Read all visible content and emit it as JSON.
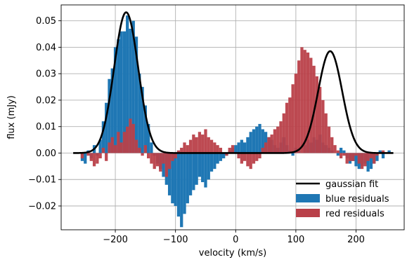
{
  "chart_data": {
    "type": "bar",
    "xlabel": "velocity (km/s)",
    "ylabel": "flux (mJy)",
    "xlim": [
      -290,
      280
    ],
    "ylim": [
      -0.029,
      0.056
    ],
    "x_ticks": [
      -200,
      -100,
      0,
      100,
      200
    ],
    "x_tick_labels": [
      "−200",
      "−100",
      "0",
      "100",
      "200"
    ],
    "y_ticks": [
      -0.02,
      -0.01,
      0.0,
      0.01,
      0.02,
      0.03,
      0.04,
      0.05
    ],
    "y_tick_labels": [
      "−0.02",
      "−0.01",
      "0.00",
      "0.01",
      "0.02",
      "0.03",
      "0.04",
      "0.05"
    ],
    "grid": true,
    "legend_position": "lower-right",
    "bin_width": 5,
    "series": [
      {
        "name": "blue residuals",
        "color": "#1f77b4",
        "x": [
          -255,
          -250,
          -245,
          -240,
          -235,
          -230,
          -225,
          -220,
          -215,
          -210,
          -205,
          -200,
          -195,
          -190,
          -185,
          -180,
          -175,
          -170,
          -165,
          -160,
          -155,
          -150,
          -145,
          -140,
          -135,
          -130,
          -125,
          -120,
          -115,
          -110,
          -105,
          -100,
          -95,
          -90,
          -85,
          -80,
          -75,
          -70,
          -65,
          -60,
          -55,
          -50,
          -45,
          -40,
          -35,
          -30,
          -25,
          -20,
          -15,
          -10,
          -5,
          0,
          5,
          10,
          15,
          20,
          25,
          30,
          35,
          40,
          45,
          50,
          55,
          60,
          65,
          70,
          75,
          80,
          85,
          90,
          95,
          100,
          105,
          110,
          115,
          120,
          125,
          130,
          135,
          140,
          145,
          150,
          155,
          160,
          165,
          170,
          175,
          180,
          185,
          190,
          195,
          200,
          205,
          210,
          215,
          220,
          225,
          230,
          235,
          240,
          245,
          250,
          255
        ],
        "values": [
          -0.003,
          -0.004,
          0.001,
          -0.002,
          0.003,
          -0.001,
          0.005,
          0.012,
          0.019,
          0.028,
          0.032,
          0.04,
          0.043,
          0.046,
          0.046,
          0.052,
          0.047,
          0.05,
          0.044,
          0.03,
          0.025,
          0.018,
          0.011,
          0.004,
          -0.001,
          -0.004,
          -0.006,
          -0.009,
          -0.012,
          -0.016,
          -0.019,
          -0.02,
          -0.024,
          -0.028,
          -0.023,
          -0.019,
          -0.016,
          -0.014,
          -0.012,
          -0.009,
          -0.011,
          -0.013,
          -0.01,
          -0.007,
          -0.006,
          -0.004,
          -0.003,
          -0.002,
          -0.001,
          0.001,
          0.002,
          0.003,
          0.004,
          0.005,
          0.004,
          0.006,
          0.008,
          0.009,
          0.01,
          0.011,
          0.009,
          0.008,
          0.006,
          0.005,
          0.003,
          0.002,
          0.004,
          0.006,
          0.003,
          0.001,
          -0.001,
          0.002,
          0.001,
          0.0,
          0.003,
          0.005,
          0.004,
          0.006,
          0.005,
          0.007,
          0.004,
          0.003,
          0.002,
          0.001,
          0.0,
          -0.001,
          0.002,
          0.001,
          -0.002,
          -0.004,
          -0.003,
          -0.005,
          -0.006,
          -0.005,
          -0.004,
          -0.007,
          -0.006,
          -0.004,
          -0.003,
          0.001,
          -0.002,
          0.0,
          0.001
        ]
      },
      {
        "name": "red residuals",
        "color": "#b94049",
        "x": [
          -255,
          -250,
          -245,
          -240,
          -235,
          -230,
          -225,
          -220,
          -215,
          -210,
          -205,
          -200,
          -195,
          -190,
          -185,
          -180,
          -175,
          -170,
          -165,
          -160,
          -155,
          -150,
          -145,
          -140,
          -135,
          -130,
          -125,
          -120,
          -115,
          -110,
          -105,
          -100,
          -95,
          -90,
          -85,
          -80,
          -75,
          -70,
          -65,
          -60,
          -55,
          -50,
          -45,
          -40,
          -35,
          -30,
          -25,
          -20,
          -15,
          -10,
          -5,
          0,
          5,
          10,
          15,
          20,
          25,
          30,
          35,
          40,
          45,
          50,
          55,
          60,
          65,
          70,
          75,
          80,
          85,
          90,
          95,
          100,
          105,
          110,
          115,
          120,
          125,
          130,
          135,
          140,
          145,
          150,
          155,
          160,
          165,
          170,
          175,
          180,
          185,
          190,
          195,
          200,
          205,
          210,
          215,
          220,
          225,
          230,
          235,
          240,
          245,
          250,
          255
        ],
        "values": [
          -0.002,
          0.0,
          -0.001,
          -0.003,
          -0.005,
          -0.004,
          -0.002,
          0.002,
          -0.003,
          0.004,
          0.006,
          0.003,
          0.008,
          0.004,
          0.008,
          0.01,
          0.013,
          0.011,
          0.005,
          0.002,
          -0.001,
          0.003,
          -0.002,
          -0.004,
          -0.006,
          -0.005,
          -0.007,
          -0.004,
          -0.009,
          -0.006,
          -0.003,
          -0.002,
          0.001,
          0.002,
          0.004,
          0.003,
          0.005,
          0.007,
          0.006,
          0.008,
          0.007,
          0.009,
          0.006,
          0.005,
          0.004,
          0.003,
          0.002,
          0.0,
          -0.001,
          0.002,
          0.003,
          0.0,
          -0.002,
          -0.004,
          -0.003,
          -0.005,
          -0.006,
          -0.004,
          -0.003,
          -0.002,
          0.002,
          0.004,
          0.006,
          0.007,
          0.009,
          0.01,
          0.012,
          0.015,
          0.019,
          0.021,
          0.026,
          0.03,
          0.035,
          0.04,
          0.039,
          0.038,
          0.036,
          0.033,
          0.029,
          0.025,
          0.02,
          0.015,
          0.01,
          0.006,
          0.003,
          0.001,
          -0.002,
          -0.001,
          -0.004,
          -0.003,
          -0.003,
          -0.001,
          -0.004,
          -0.006,
          -0.005,
          -0.003,
          -0.002,
          -0.004,
          -0.001,
          0.0,
          0.001,
          0.0,
          0.0
        ]
      },
      {
        "name": "gaussian fit",
        "type": "line",
        "color": "#000000",
        "components": [
          {
            "amplitude": 0.0532,
            "center": -182,
            "sigma": 20
          },
          {
            "amplitude": 0.0385,
            "center": 157,
            "sigma": 20
          }
        ],
        "x_range": [
          -270,
          262
        ]
      }
    ],
    "legend": [
      "gaussian fit",
      "blue residuals",
      "red residuals"
    ]
  }
}
